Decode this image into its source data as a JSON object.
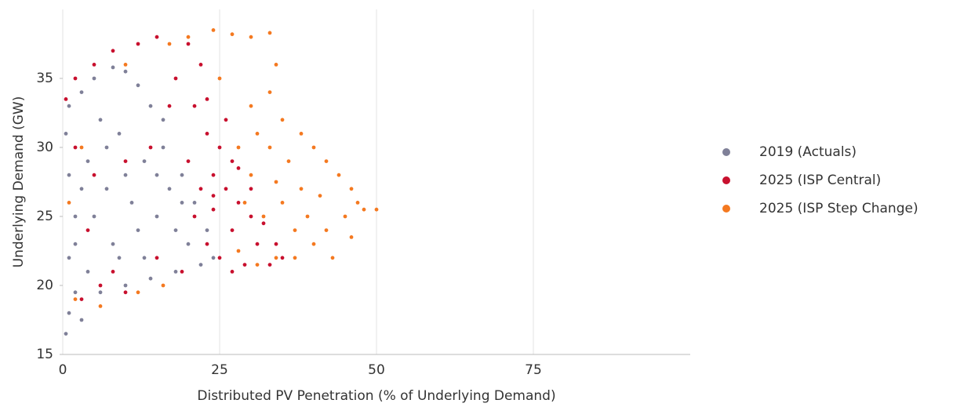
{
  "chart_data": {
    "type": "scatter",
    "x_label": "Distributed PV Penetration (% of Underlying Demand)",
    "y_label": "Underlying Demand (GW)",
    "xlim": [
      0,
      100
    ],
    "xticks": [
      0,
      25,
      50,
      75
    ],
    "ylim": [
      15,
      40
    ],
    "yticks": [
      15,
      20,
      25,
      30,
      35
    ],
    "grid": "x",
    "legend": "right",
    "series": [
      {
        "name": "2019 (Actuals)",
        "color": "#7f8098",
        "x": [
          0.5,
          1,
          2,
          3,
          1,
          2,
          1,
          0.5,
          1,
          3,
          5,
          8,
          10,
          12,
          14,
          16,
          6,
          9,
          4,
          7,
          10,
          13,
          16,
          19,
          21,
          23,
          24,
          22,
          18,
          14,
          10,
          6,
          4,
          8,
          12,
          15,
          18,
          20,
          5,
          3,
          11,
          17,
          9,
          13,
          19,
          2,
          7,
          15
        ],
        "values": [
          16.5,
          18,
          19.5,
          17.5,
          22,
          25,
          28,
          31,
          33,
          34,
          35,
          35.8,
          35.5,
          34.5,
          33,
          32,
          32,
          31,
          29,
          27,
          28,
          29,
          30,
          28,
          26,
          24,
          22,
          21.5,
          21,
          20.5,
          20,
          19.5,
          21,
          23,
          24,
          25,
          24,
          23,
          25,
          27,
          26,
          27,
          22,
          22,
          26,
          23,
          30,
          28
        ]
      },
      {
        "name": "2025 (ISP Central)",
        "color": "#c8102e",
        "x": [
          0.5,
          2,
          5,
          8,
          12,
          15,
          20,
          22,
          18,
          21,
          23,
          25,
          27,
          24,
          22,
          26,
          28,
          30,
          32,
          34,
          35,
          33,
          29,
          27,
          25,
          23,
          21,
          24,
          27,
          30,
          28,
          20,
          26,
          23,
          17,
          14,
          10,
          5,
          2,
          4,
          8,
          6,
          10,
          15,
          3,
          19,
          31,
          24
        ],
        "values": [
          33.5,
          35,
          36,
          37,
          37.5,
          38,
          37.5,
          36,
          35,
          33,
          31,
          30,
          29,
          28,
          27,
          27,
          26,
          25,
          24.5,
          23,
          22,
          21.5,
          21.5,
          21,
          22,
          23,
          25,
          25.5,
          24,
          27,
          28.5,
          29,
          32,
          33.5,
          33,
          30,
          29,
          28,
          30,
          24,
          21,
          20,
          19.5,
          22,
          19,
          21,
          23,
          26.5
        ]
      },
      {
        "name": "2025 (ISP Step Change)",
        "color": "#f47920",
        "x": [
          24,
          27,
          30,
          33,
          20,
          17,
          10,
          34,
          33,
          25,
          30,
          35,
          38,
          40,
          42,
          44,
          46,
          47,
          48,
          50,
          45,
          42,
          40,
          37,
          34,
          31,
          28,
          32,
          35,
          38,
          41,
          36,
          33,
          30,
          31,
          28,
          39,
          43,
          37,
          46,
          29,
          34,
          2,
          6,
          12,
          16,
          1,
          3
        ],
        "values": [
          38.5,
          38.2,
          38,
          38.3,
          38,
          37.5,
          36,
          36,
          34,
          35,
          33,
          32,
          31,
          30,
          29,
          28,
          27,
          26,
          25.5,
          25.5,
          25,
          24,
          23,
          22,
          22,
          21.5,
          22.5,
          25,
          26,
          27,
          26.5,
          29,
          30,
          28,
          31,
          30,
          25,
          22,
          24,
          23.5,
          26,
          27.5,
          19,
          18.5,
          19.5,
          20,
          26,
          30
        ]
      }
    ]
  }
}
